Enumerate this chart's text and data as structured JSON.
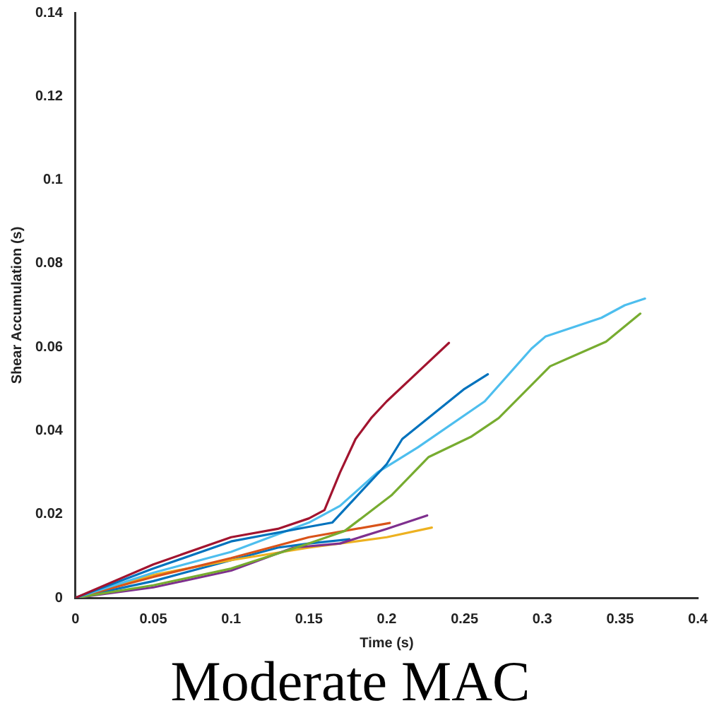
{
  "chart_data": {
    "type": "line",
    "title": "Moderate MAC",
    "xlabel": "Time (s)",
    "ylabel": "Shear Accumulation (s)",
    "xlim": [
      0,
      0.4
    ],
    "xticks": [
      0,
      0.05,
      0.1,
      0.15,
      0.2,
      0.25,
      0.3,
      0.35,
      0.4
    ],
    "ylim": [
      0,
      0.14
    ],
    "yticks": [
      0,
      0.02,
      0.04,
      0.06,
      0.08,
      0.1,
      0.12,
      0.14
    ],
    "grid": false,
    "legend": false,
    "marker": "none",
    "line_style": "solid",
    "series": [
      {
        "color": "#a2142f",
        "x": [
          0,
          0.05,
          0.1,
          0.13,
          0.15,
          0.16,
          0.17,
          0.18,
          0.19,
          0.2,
          0.22,
          0.24
        ],
        "values": [
          0,
          0.008,
          0.0145,
          0.0165,
          0.019,
          0.021,
          0.03,
          0.038,
          0.043,
          0.047,
          0.054,
          0.061
        ]
      },
      {
        "color": "#0072bd",
        "x": [
          0,
          0.05,
          0.1,
          0.15,
          0.165,
          0.18,
          0.2,
          0.21,
          0.23,
          0.25,
          0.265
        ],
        "values": [
          0,
          0.007,
          0.0135,
          0.017,
          0.018,
          0.024,
          0.032,
          0.038,
          0.044,
          0.05,
          0.0535
        ]
      },
      {
        "color": "#4dbeee",
        "x": [
          0,
          0.05,
          0.1,
          0.15,
          0.17,
          0.194,
          0.22,
          0.263,
          0.293,
          0.302,
          0.338,
          0.353,
          0.366
        ],
        "values": [
          0,
          0.006,
          0.011,
          0.018,
          0.022,
          0.03,
          0.036,
          0.047,
          0.0596,
          0.0625,
          0.067,
          0.07,
          0.0716
        ]
      },
      {
        "color": "#77ac30",
        "x": [
          0,
          0.05,
          0.1,
          0.15,
          0.173,
          0.203,
          0.227,
          0.254,
          0.272,
          0.305,
          0.341,
          0.363
        ],
        "values": [
          0,
          0.003,
          0.007,
          0.013,
          0.016,
          0.0245,
          0.0337,
          0.0385,
          0.043,
          0.0554,
          0.0613,
          0.068
        ]
      },
      {
        "color": "#d95319",
        "x": [
          0,
          0.05,
          0.1,
          0.15,
          0.202
        ],
        "values": [
          0,
          0.005,
          0.0095,
          0.0145,
          0.0179
        ]
      },
      {
        "color": "#7e2f8e",
        "x": [
          0,
          0.05,
          0.1,
          0.14,
          0.17,
          0.2,
          0.226
        ],
        "values": [
          0,
          0.0025,
          0.0065,
          0.012,
          0.013,
          0.0165,
          0.0197
        ]
      },
      {
        "color": "#edb120",
        "x": [
          0,
          0.05,
          0.1,
          0.15,
          0.2,
          0.229
        ],
        "values": [
          0,
          0.0055,
          0.009,
          0.012,
          0.0145,
          0.0168
        ]
      },
      {
        "color": "#0072bd",
        "x": [
          0,
          0.05,
          0.1,
          0.13,
          0.15,
          0.176
        ],
        "values": [
          0,
          0.004,
          0.009,
          0.012,
          0.013,
          0.014
        ]
      }
    ]
  }
}
